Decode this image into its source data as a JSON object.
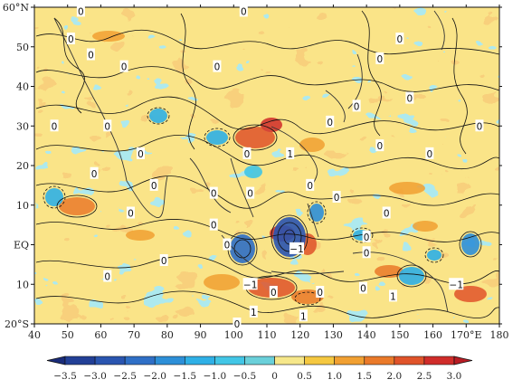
{
  "map": {
    "lon_ticks": [
      "40",
      "50",
      "60",
      "70",
      "80",
      "90",
      "100",
      "110",
      "120",
      "130",
      "140",
      "150",
      "160",
      "170°E",
      "180"
    ],
    "lat_ticks": [
      "20°S",
      "10",
      "EQ",
      "10",
      "20",
      "30",
      "40",
      "50",
      "60°N"
    ],
    "lon_range": [
      40,
      180
    ],
    "lat_range": [
      -20,
      60
    ],
    "contour_labels": [
      {
        "text": "0",
        "lon": 54,
        "lat": 59
      },
      {
        "text": "0",
        "lon": 103,
        "lat": 59
      },
      {
        "text": "0",
        "lon": 51,
        "lat": 52
      },
      {
        "text": "0",
        "lon": 150,
        "lat": 52
      },
      {
        "text": "0",
        "lon": 57,
        "lat": 48
      },
      {
        "text": "0",
        "lon": 67,
        "lat": 45
      },
      {
        "text": "0",
        "lon": 95,
        "lat": 45
      },
      {
        "text": "0",
        "lon": 144,
        "lat": 47
      },
      {
        "text": "0",
        "lon": 153,
        "lat": 37
      },
      {
        "text": "0",
        "lon": 137,
        "lat": 35
      },
      {
        "text": "0",
        "lon": 129,
        "lat": 31
      },
      {
        "text": "0",
        "lon": 46,
        "lat": 30
      },
      {
        "text": "0",
        "lon": 62,
        "lat": 30
      },
      {
        "text": "0",
        "lon": 174,
        "lat": 30
      },
      {
        "text": "0",
        "lon": 144,
        "lat": 25
      },
      {
        "text": "0",
        "lon": 159,
        "lat": 23
      },
      {
        "text": "0",
        "lon": 72,
        "lat": 23
      },
      {
        "text": "0",
        "lon": 104,
        "lat": 23
      },
      {
        "text": "1",
        "lon": 117,
        "lat": 23
      },
      {
        "text": "0",
        "lon": 58,
        "lat": 18
      },
      {
        "text": "0",
        "lon": 76,
        "lat": 15
      },
      {
        "text": "0",
        "lon": 94,
        "lat": 13
      },
      {
        "text": "0",
        "lon": 105,
        "lat": 13
      },
      {
        "text": "0",
        "lon": 123,
        "lat": 15
      },
      {
        "text": "0",
        "lon": 131,
        "lat": 12
      },
      {
        "text": "0",
        "lon": 146,
        "lat": 8
      },
      {
        "text": "0",
        "lon": 69,
        "lat": 8
      },
      {
        "text": "0",
        "lon": 94,
        "lat": 5
      },
      {
        "text": "0",
        "lon": 140,
        "lat": 2
      },
      {
        "text": "0",
        "lon": 98,
        "lat": 0
      },
      {
        "text": "−1",
        "lon": 119,
        "lat": -1
      },
      {
        "text": "0",
        "lon": 140,
        "lat": -2
      },
      {
        "text": "0",
        "lon": 79,
        "lat": -4
      },
      {
        "text": "0",
        "lon": 62,
        "lat": -8
      },
      {
        "text": "−1",
        "lon": 105,
        "lat": -10
      },
      {
        "text": "0",
        "lon": 112,
        "lat": -12
      },
      {
        "text": "0",
        "lon": 126,
        "lat": -12
      },
      {
        "text": "0",
        "lon": 139,
        "lat": -11
      },
      {
        "text": "1",
        "lon": 148,
        "lat": -13
      },
      {
        "text": "−1",
        "lon": 167,
        "lat": -10
      },
      {
        "text": "1",
        "lon": 106,
        "lat": -17
      },
      {
        "text": "1",
        "lon": 121,
        "lat": -18
      },
      {
        "text": "0",
        "lon": 101,
        "lat": -20
      }
    ]
  },
  "colorbar": {
    "labels": [
      "−3.5",
      "−3.0",
      "−2.5",
      "−2.0",
      "−1.5",
      "−1.0",
      "−0.5",
      "0",
      "0.5",
      "1.0",
      "1.5",
      "2.0",
      "2.5",
      "3.0"
    ],
    "colors": [
      "#1a2c7a",
      "#223f96",
      "#2a55b0",
      "#2f6fc6",
      "#2d8fd8",
      "#2fb0e6",
      "#42c6e6",
      "#6ad0da",
      "#f6e78a",
      "#f5c840",
      "#f1a032",
      "#ea7a2a",
      "#e0532a",
      "#d02c2a",
      "#b81c24"
    ]
  }
}
